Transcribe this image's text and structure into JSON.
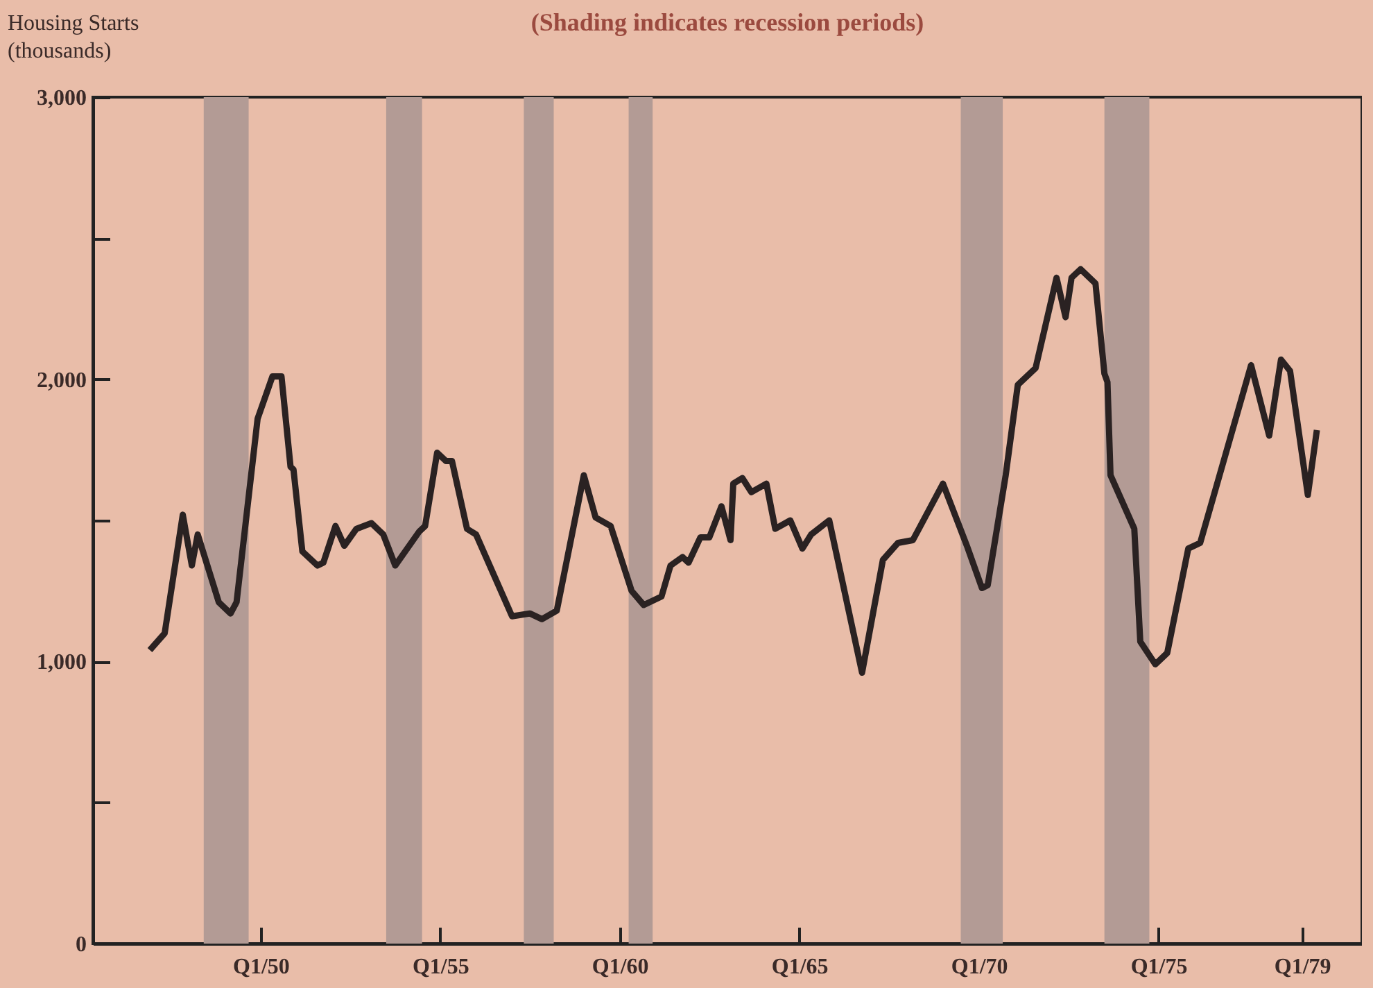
{
  "chart_data": {
    "type": "line",
    "title": "(Shading indicates recession periods)",
    "ylabel": "Housing Starts\n(thousands)",
    "x": [
      "1946-12",
      "1947-05",
      "1947-11",
      "1948-02",
      "1948-04",
      "1948-11",
      "1949-03",
      "1949-05",
      "1949-12",
      "1950-05",
      "1950-08",
      "1950-11",
      "1950-12",
      "1951-03",
      "1951-08",
      "1951-10",
      "1952-02",
      "1952-05",
      "1952-09",
      "1953-02",
      "1953-06",
      "1953-10",
      "1954-06",
      "1954-08",
      "1954-12",
      "1955-03",
      "1955-05",
      "1955-10",
      "1956-01",
      "1957-01",
      "1957-07",
      "1957-11",
      "1958-04",
      "1959-01",
      "1959-05",
      "1959-10",
      "1960-05",
      "1960-09",
      "1961-03",
      "1961-06",
      "1961-10",
      "1961-12",
      "1962-04",
      "1962-07",
      "1962-11",
      "1963-02",
      "1963-03",
      "1963-06",
      "1963-09",
      "1964-02",
      "1964-05",
      "1964-10",
      "1965-02",
      "1965-05",
      "1965-11",
      "1966-10",
      "1967-05",
      "1967-10",
      "1968-03",
      "1969-01",
      "1969-09",
      "1970-02",
      "1970-04",
      "1970-10",
      "1971-02",
      "1971-08",
      "1972-03",
      "1972-06",
      "1972-08",
      "1972-11",
      "1973-04",
      "1973-07",
      "1973-08",
      "1973-09",
      "1974-05",
      "1974-07",
      "1974-12",
      "1975-04",
      "1975-11",
      "1976-03",
      "1977-08",
      "1978-02",
      "1978-06",
      "1978-09",
      "1979-03",
      "1979-06"
    ],
    "series": [
      {
        "color": "#2a2222",
        "values": [
          1040,
          1100,
          1520,
          1340,
          1450,
          1210,
          1170,
          1210,
          1860,
          2010,
          2010,
          1690,
          1680,
          1390,
          1340,
          1350,
          1480,
          1410,
          1470,
          1490,
          1450,
          1340,
          1460,
          1480,
          1740,
          1710,
          1710,
          1470,
          1450,
          1160,
          1170,
          1150,
          1180,
          1660,
          1510,
          1480,
          1250,
          1200,
          1230,
          1340,
          1370,
          1350,
          1440,
          1440,
          1550,
          1430,
          1630,
          1650,
          1600,
          1630,
          1470,
          1500,
          1400,
          1450,
          1500,
          960,
          1360,
          1420,
          1430,
          1630,
          1410,
          1260,
          1270,
          1660,
          1980,
          2040,
          2360,
          2220,
          2360,
          2390,
          2340,
          2020,
          1990,
          1660,
          1470,
          1070,
          990,
          1030,
          1400,
          1420,
          2050,
          1800,
          2070,
          2030,
          1590,
          1820
        ]
      }
    ],
    "xlim": [
      "1945-05",
      "1980-09"
    ],
    "xticks": [
      {
        "value": "1950-01",
        "label": "Q1/50"
      },
      {
        "value": "1955-01",
        "label": "Q1/55"
      },
      {
        "value": "1960-01",
        "label": "Q1/60"
      },
      {
        "value": "1965-01",
        "label": "Q1/65"
      },
      {
        "value": "1970-01",
        "label": "Q1/70"
      },
      {
        "value": "1975-01",
        "label": "Q1/75"
      },
      {
        "value": "1979-01",
        "label": "Q1/79"
      }
    ],
    "ylim": [
      0,
      3000
    ],
    "yticks": [
      {
        "value": 0,
        "label": "0"
      },
      {
        "value": 500,
        "label": null
      },
      {
        "value": 1000,
        "label": "1,000"
      },
      {
        "value": 1500,
        "label": null
      },
      {
        "value": 2000,
        "label": "2,000"
      },
      {
        "value": 2500,
        "label": null
      },
      {
        "value": 3000,
        "label": "3,000"
      }
    ],
    "bands": [
      {
        "axis": "x",
        "from": "1948-06",
        "to": "1949-09",
        "color": "#b39b95"
      },
      {
        "axis": "x",
        "from": "1953-07",
        "to": "1954-07",
        "color": "#b39b95"
      },
      {
        "axis": "x",
        "from": "1957-05",
        "to": "1958-03",
        "color": "#b39b95"
      },
      {
        "axis": "x",
        "from": "1960-04",
        "to": "1960-12",
        "color": "#b39b95"
      },
      {
        "axis": "x",
        "from": "1969-07",
        "to": "1970-09",
        "color": "#b39b95"
      },
      {
        "axis": "x",
        "from": "1973-07",
        "to": "1974-10",
        "color": "#b39b95"
      }
    ],
    "grid": false,
    "marker": "none",
    "line_style": "solid"
  }
}
